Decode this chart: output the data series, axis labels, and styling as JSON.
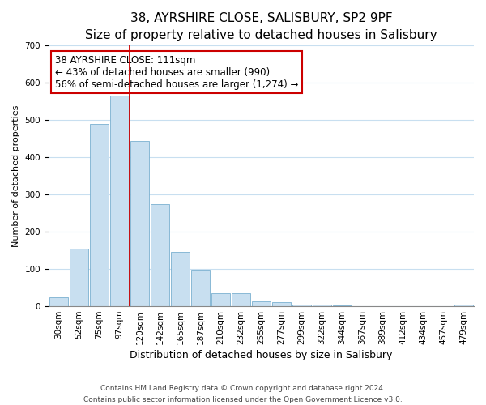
{
  "title": "38, AYRSHIRE CLOSE, SALISBURY, SP2 9PF",
  "subtitle": "Size of property relative to detached houses in Salisbury",
  "xlabel": "Distribution of detached houses by size in Salisbury",
  "ylabel": "Number of detached properties",
  "bar_labels": [
    "30sqm",
    "52sqm",
    "75sqm",
    "97sqm",
    "120sqm",
    "142sqm",
    "165sqm",
    "187sqm",
    "210sqm",
    "232sqm",
    "255sqm",
    "277sqm",
    "299sqm",
    "322sqm",
    "344sqm",
    "367sqm",
    "389sqm",
    "412sqm",
    "434sqm",
    "457sqm",
    "479sqm"
  ],
  "bar_values": [
    25,
    155,
    490,
    565,
    445,
    275,
    145,
    97,
    36,
    35,
    14,
    12,
    5,
    4,
    2,
    1,
    0.5,
    0.5,
    0.5,
    0.5,
    5
  ],
  "bar_color": "#c8dff0",
  "bar_edge_color": "#7ab0d0",
  "vline_x": 3.5,
  "vline_color": "#cc0000",
  "annotation_box_text": "38 AYRSHIRE CLOSE: 111sqm\n← 43% of detached houses are smaller (990)\n56% of semi-detached houses are larger (1,274) →",
  "annotation_box_color": "white",
  "annotation_box_edge_color": "#cc0000",
  "ylim": [
    0,
    700
  ],
  "grid_color": "#c8dff0",
  "footnote": "Contains HM Land Registry data © Crown copyright and database right 2024.\nContains public sector information licensed under the Open Government Licence v3.0.",
  "title_fontsize": 11,
  "xlabel_fontsize": 9,
  "ylabel_fontsize": 8,
  "tick_fontsize": 7.5,
  "annotation_fontsize": 8.5,
  "footnote_fontsize": 6.5
}
